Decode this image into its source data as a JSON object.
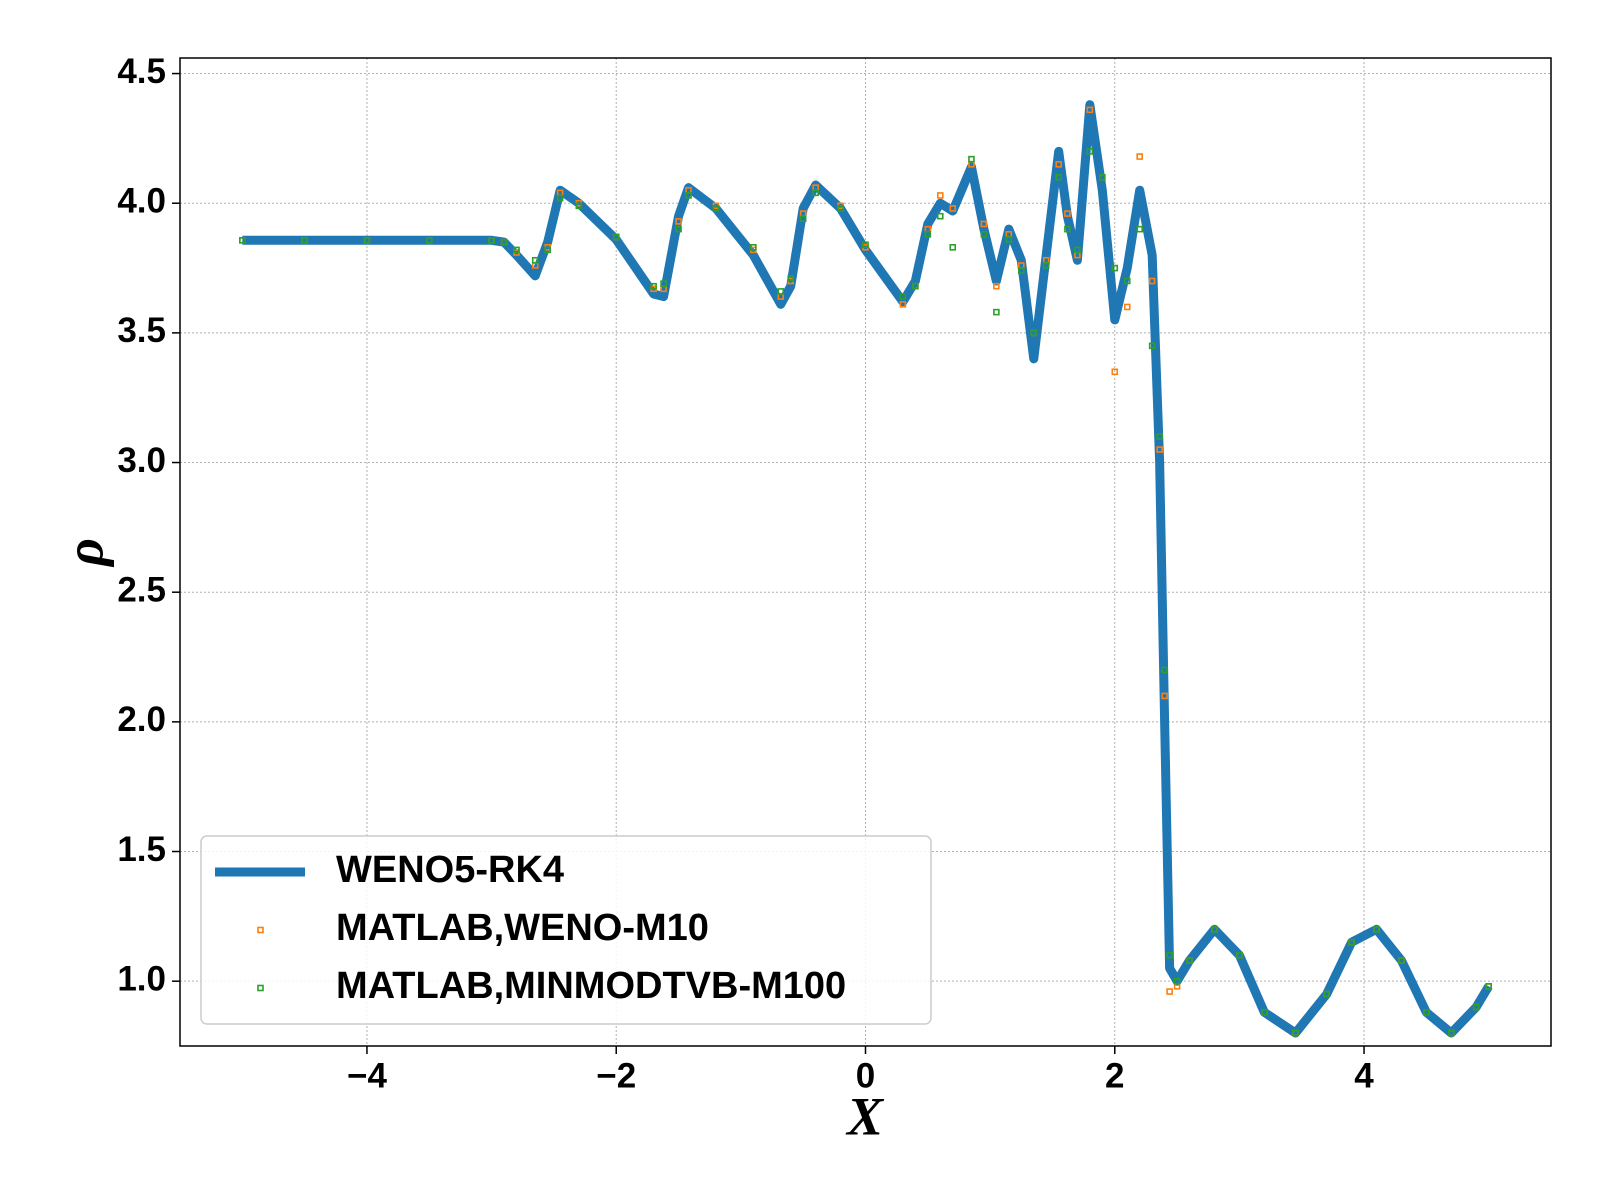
{
  "chart_data": {
    "type": "line",
    "xlabel": "X",
    "ylabel": "ρ",
    "x": [
      -5,
      -4.5,
      -4,
      -3.5,
      -3,
      -2.9,
      -2.8,
      -2.65,
      -2.55,
      -2.45,
      -2.3,
      -2,
      -1.7,
      -1.62,
      -1.5,
      -1.42,
      -1.2,
      -0.9,
      -0.68,
      -0.6,
      -0.5,
      -0.4,
      -0.2,
      0,
      0.3,
      0.4,
      0.5,
      0.6,
      0.7,
      0.85,
      0.95,
      1.05,
      1.15,
      1.25,
      1.35,
      1.45,
      1.55,
      1.62,
      1.7,
      1.8,
      1.9,
      2,
      2.1,
      2.2,
      2.3,
      2.36,
      2.4,
      2.44,
      2.5,
      2.6,
      2.8,
      3,
      3.2,
      3.45,
      3.7,
      3.9,
      4.1,
      4.3,
      4.5,
      4.7,
      4.9,
      5
    ],
    "series": [
      {
        "name": "WENO5-RK4",
        "color": "#1f77b4",
        "style": "line",
        "values": [
          3.857,
          3.857,
          3.857,
          3.857,
          3.857,
          3.85,
          3.8,
          3.72,
          3.85,
          4.05,
          4.0,
          3.86,
          3.65,
          3.64,
          3.95,
          4.06,
          3.98,
          3.8,
          3.61,
          3.68,
          3.98,
          4.07,
          3.98,
          3.82,
          3.62,
          3.7,
          3.92,
          4.0,
          3.97,
          4.14,
          3.9,
          3.7,
          3.9,
          3.78,
          3.4,
          3.8,
          4.2,
          3.95,
          3.78,
          4.38,
          4.05,
          3.55,
          3.75,
          4.05,
          3.8,
          3.0,
          2.0,
          1.05,
          1.0,
          1.08,
          1.2,
          1.1,
          0.88,
          0.8,
          0.95,
          1.15,
          1.2,
          1.08,
          0.88,
          0.8,
          0.9,
          0.98
        ]
      },
      {
        "name": "MATLAB,WENO-M10",
        "color": "#ff7f0e",
        "style": "marker",
        "values": [
          3.857,
          3.857,
          3.857,
          3.857,
          3.857,
          3.85,
          3.81,
          3.76,
          3.83,
          4.04,
          4.0,
          3.87,
          3.67,
          3.67,
          3.93,
          4.05,
          3.99,
          3.82,
          3.64,
          3.7,
          3.96,
          4.06,
          3.99,
          3.83,
          3.61,
          3.68,
          3.9,
          4.03,
          3.98,
          4.15,
          3.92,
          3.68,
          3.88,
          3.76,
          3.5,
          3.78,
          4.15,
          3.96,
          3.8,
          4.36,
          4.1,
          3.35,
          3.6,
          4.18,
          3.7,
          3.05,
          2.1,
          0.96,
          0.98,
          1.08,
          1.2,
          1.1,
          0.88,
          0.8,
          0.95,
          1.15,
          1.2,
          1.08,
          0.88,
          0.8,
          0.9,
          0.98
        ]
      },
      {
        "name": "MATLAB,MINMODTVB-M100",
        "color": "#2ca02c",
        "style": "marker",
        "values": [
          3.857,
          3.857,
          3.857,
          3.857,
          3.857,
          3.85,
          3.82,
          3.78,
          3.82,
          4.02,
          3.99,
          3.87,
          3.68,
          3.69,
          3.9,
          4.03,
          3.98,
          3.83,
          3.66,
          3.71,
          3.94,
          4.04,
          3.98,
          3.84,
          3.64,
          3.68,
          3.88,
          3.95,
          3.83,
          4.17,
          3.88,
          3.58,
          3.86,
          3.74,
          3.5,
          3.76,
          4.1,
          3.9,
          3.82,
          4.2,
          4.1,
          3.75,
          3.7,
          3.9,
          3.45,
          3.1,
          2.2,
          1.1,
          1.0,
          1.08,
          1.2,
          1.1,
          0.88,
          0.8,
          0.95,
          1.15,
          1.2,
          1.08,
          0.88,
          0.8,
          0.9,
          0.98
        ]
      }
    ],
    "xlim": [
      -5.5,
      5.5
    ],
    "ylim": [
      0.75,
      4.56
    ],
    "xticks": [
      {
        "value": -4,
        "label": "−4"
      },
      {
        "value": -2,
        "label": "−2"
      },
      0,
      2,
      4
    ],
    "yticks": [
      {
        "value": 1,
        "label": "1.0"
      },
      {
        "value": 1.5,
        "label": "1.5"
      },
      {
        "value": 2,
        "label": "2.0"
      },
      {
        "value": 2.5,
        "label": "2.5"
      },
      {
        "value": 3,
        "label": "3.0"
      },
      {
        "value": 3.5,
        "label": "3.5"
      },
      {
        "value": 4,
        "label": "4.0"
      },
      {
        "value": 4.5,
        "label": "4.5"
      }
    ],
    "grid": true,
    "legend": "lower left"
  }
}
